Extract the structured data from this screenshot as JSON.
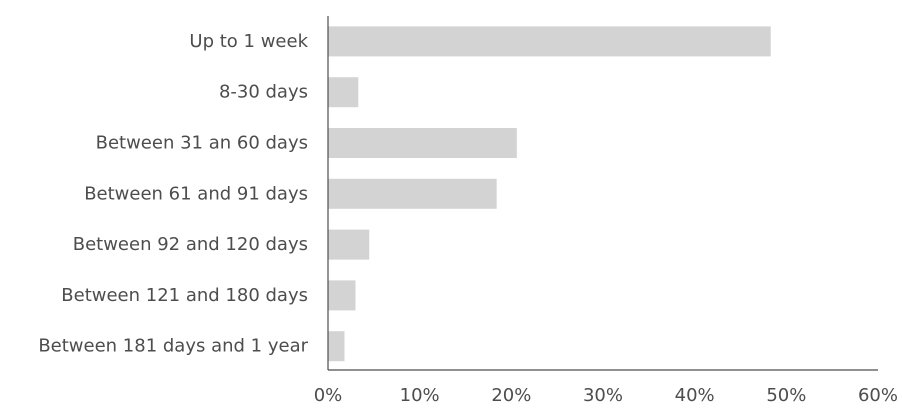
{
  "chart_data": {
    "type": "bar",
    "orientation": "horizontal",
    "categories": [
      "Up to 1 week",
      "8-30 days",
      "Between 31 an 60 days",
      "Between 61 and 91 days",
      "Between 92 and 120 days",
      "Between 121 and 180 days",
      "Between 181 days and 1 year"
    ],
    "values": [
      48.3,
      3.3,
      20.6,
      18.4,
      4.5,
      3.0,
      1.8
    ],
    "value_unit": "%",
    "xlim": [
      0,
      60
    ],
    "xticks": [
      0,
      10,
      20,
      30,
      40,
      50,
      60
    ],
    "xtick_labels": [
      "0%",
      "10%",
      "20%",
      "30%",
      "40%",
      "50%",
      "60%"
    ],
    "title": "",
    "xlabel": "",
    "ylabel": "",
    "grid": false,
    "legend": "none",
    "bar_color": "#d3d3d3",
    "axis_color": "#4d4d4d",
    "text_color": "#4d4d4d"
  }
}
